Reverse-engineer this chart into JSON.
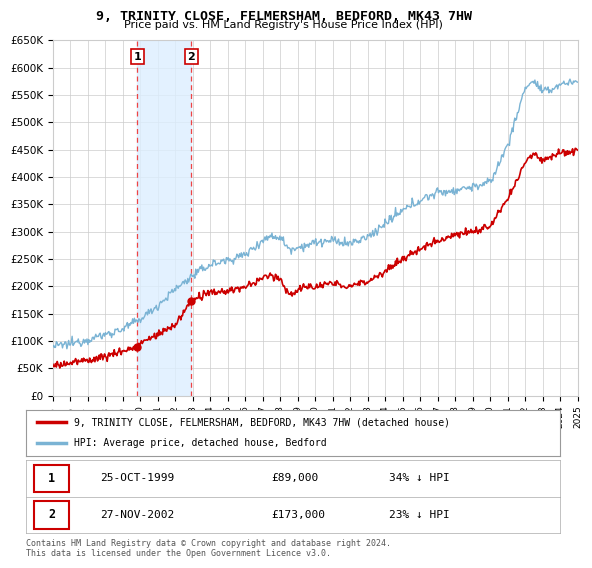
{
  "title": "9, TRINITY CLOSE, FELMERSHAM, BEDFORD, MK43 7HW",
  "subtitle": "Price paid vs. HM Land Registry's House Price Index (HPI)",
  "ylabel_ticks": [
    "£0",
    "£50K",
    "£100K",
    "£150K",
    "£200K",
    "£250K",
    "£300K",
    "£350K",
    "£400K",
    "£450K",
    "£500K",
    "£550K",
    "£600K",
    "£650K"
  ],
  "ytick_values": [
    0,
    50000,
    100000,
    150000,
    200000,
    250000,
    300000,
    350000,
    400000,
    450000,
    500000,
    550000,
    600000,
    650000
  ],
  "hpi_color": "#7ab3d4",
  "price_color": "#cc0000",
  "purchase1": {
    "date_label": "25-OCT-1999",
    "price": 89000,
    "pct": "34% ↓ HPI",
    "year": 1999.82
  },
  "purchase2": {
    "date_label": "27-NOV-2002",
    "price": 173000,
    "pct": "23% ↓ HPI",
    "year": 2002.91
  },
  "legend_label_red": "9, TRINITY CLOSE, FELMERSHAM, BEDFORD, MK43 7HW (detached house)",
  "legend_label_blue": "HPI: Average price, detached house, Bedford",
  "footnote": "Contains HM Land Registry data © Crown copyright and database right 2024.\nThis data is licensed under the Open Government Licence v3.0.",
  "xmin": 1995,
  "xmax": 2025,
  "ymin": 0,
  "ymax": 650000,
  "background_color": "#ffffff",
  "grid_color": "#cccccc",
  "highlight_color": "#ddeeff"
}
